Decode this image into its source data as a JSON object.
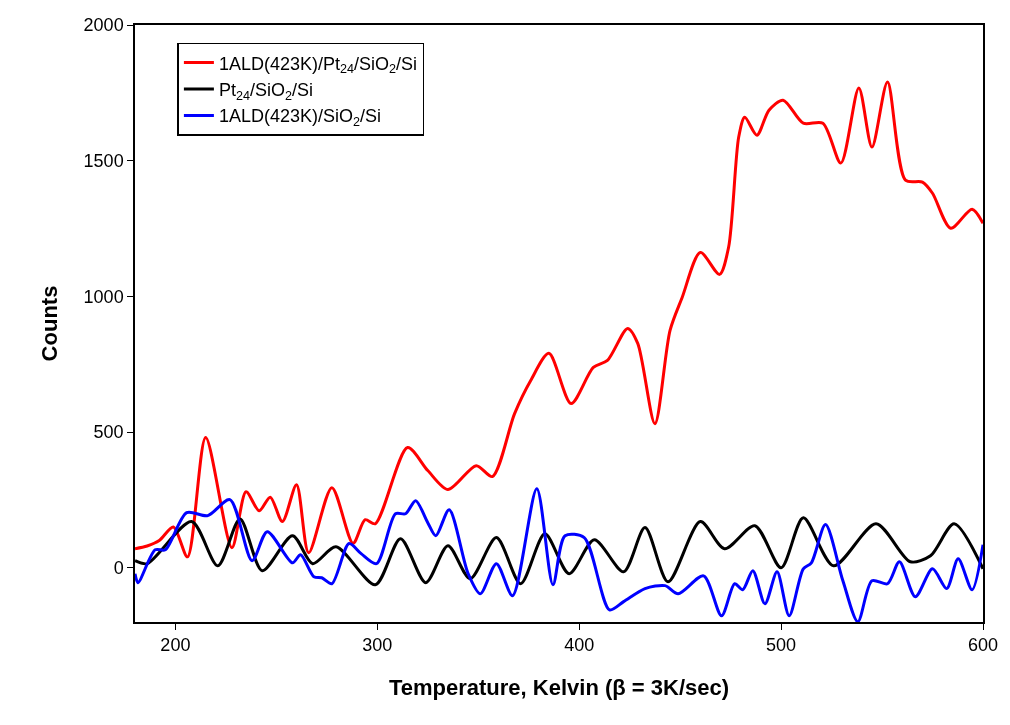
{
  "chart_data": {
    "type": "line",
    "xlabel": "Temperature, Kelvin (β = 3K/sec)",
    "ylabel": "Counts",
    "xlim": [
      180,
      600
    ],
    "xticks": [
      200,
      300,
      400,
      500,
      600
    ],
    "ylim": [
      -200,
      2000
    ],
    "yticks": [
      0,
      500,
      1000,
      1500,
      2000
    ],
    "legend": "top left",
    "marker": "none",
    "line_style": "solid",
    "series": [
      {
        "name": "1ALD(423K)/Pt$_{24}$/SiO$_{2}$/Si",
        "color": "#ff0000",
        "x": [
          180,
          186,
          192,
          199,
          206,
          215,
          228,
          235,
          241.5,
          247,
          253,
          260,
          266,
          277.5,
          288,
          294,
          299,
          315,
          325,
          335,
          349,
          357,
          368,
          376,
          385,
          396,
          407,
          414,
          424,
          429,
          437.5,
          445,
          451,
          460,
          469.5,
          474,
          479,
          482,
          488,
          494,
          501,
          511,
          520.7,
          529.6,
          538.5,
          545,
          552.7,
          561.6,
          570,
          575,
          584,
          594.6,
          600
        ],
        "values": [
          70,
          80,
          100,
          150,
          40,
          480,
          74,
          280,
          210,
          260,
          170,
          306,
          55,
          295,
          90,
          177,
          162,
          443,
          358,
          288,
          376,
          336,
          568,
          690,
          790,
          605,
          738,
          764,
          882,
          827,
          531,
          875,
          996,
          1162,
          1081,
          1181,
          1587,
          1660,
          1594,
          1686,
          1723,
          1638,
          1638,
          1491,
          1768,
          1550,
          1790,
          1428,
          1421,
          1380,
          1251,
          1321,
          1269
        ]
      },
      {
        "name": "Pt$_{24}$/SiO$_{2}$/Si",
        "color": "#000000",
        "x": [
          180,
          186,
          208,
          221,
          232,
          243,
          258,
          268,
          279.5,
          299,
          311.5,
          324,
          335,
          346,
          359,
          371,
          383,
          395,
          407.5,
          422,
          432.6,
          444,
          460,
          472,
          487,
          500,
          511,
          526,
          547,
          564,
          574,
          585.7,
          600
        ],
        "values": [
          26,
          15,
          170,
          7,
          180,
          -11,
          118,
          15,
          77,
          -63,
          107,
          -55,
          81,
          -41,
          111,
          -59,
          125,
          -22,
          103,
          -15,
          148,
          -52,
          170,
          70,
          155,
          0,
          184,
          7,
          162,
          22,
          44,
          162,
          -4
        ]
      },
      {
        "name": "1ALD(423K)/SiO$_{2}$/Si",
        "color": "#0000ff",
        "x": [
          180,
          181.5,
          190,
          195,
          205.6,
          216,
          227,
          238,
          245.5,
          258,
          262,
          268.6,
          272.5,
          277.5,
          286,
          292,
          299.6,
          309,
          314,
          319,
          325,
          329,
          335.6,
          345,
          351,
          359,
          367,
          379,
          387,
          393,
          402.5,
          415,
          422,
          432.6,
          442.5,
          449,
          461.6,
          470.5,
          477,
          481,
          486,
          492,
          498,
          504,
          511,
          515,
          522,
          530.6,
          538,
          545,
          552.7,
          558.6,
          566.5,
          575,
          582,
          587.7,
          594.6,
          600
        ],
        "values": [
          -22,
          -55,
          66,
          66,
          203,
          192,
          251,
          26,
          133,
          18,
          48,
          -33,
          -37,
          -59,
          89,
          52,
          15,
          199,
          199,
          247,
          166,
          118,
          214,
          -22,
          -96,
          15,
          -103,
          291,
          -63,
          118,
          111,
          -155,
          -125,
          -77,
          -66,
          -96,
          -30,
          -177,
          -59,
          -81,
          -11,
          -133,
          -15,
          -177,
          -4,
          18,
          159,
          -48,
          -199,
          -48,
          -59,
          22,
          -107,
          -4,
          -77,
          33,
          -81,
          85
        ]
      }
    ]
  }
}
